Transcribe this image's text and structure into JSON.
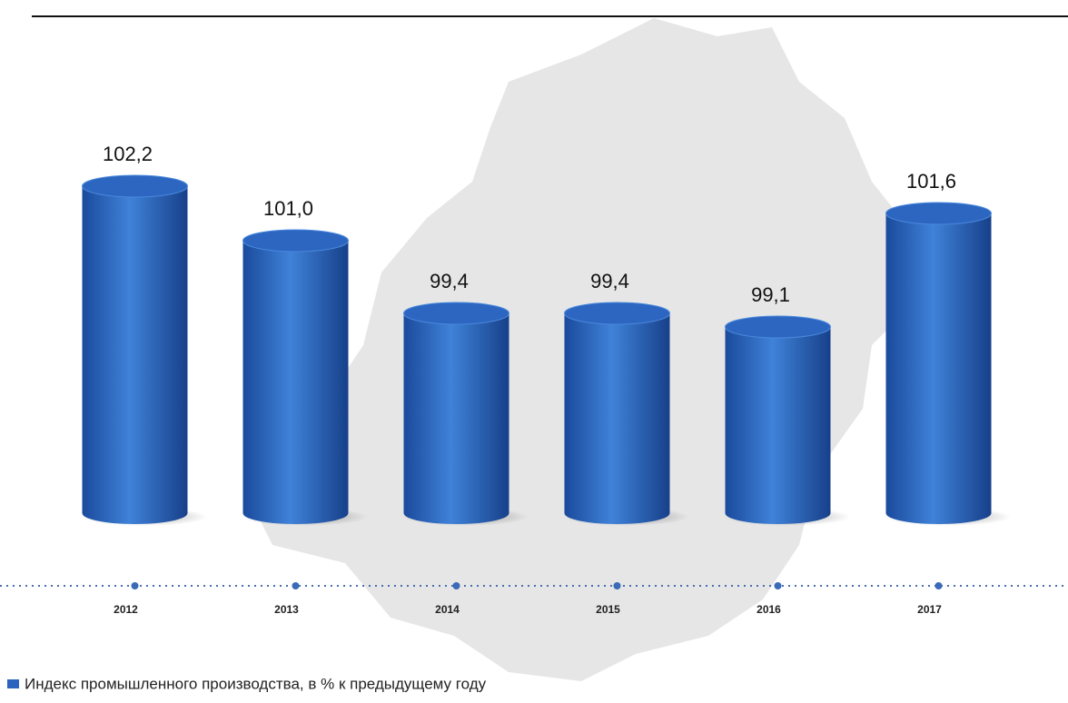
{
  "chart_data": {
    "type": "bar",
    "categories": [
      "2012",
      "2013",
      "2014",
      "2015",
      "2016",
      "2017"
    ],
    "series": [
      {
        "name": "Индекс промышленного  производства, в % к предыдущему году",
        "color": "#2a64be",
        "values": [
          102.2,
          101.0,
          99.4,
          99.4,
          99.1,
          101.6
        ],
        "value_labels": [
          "102,2",
          "101,0",
          "99,4",
          "99,4",
          "99,1",
          "101,6"
        ]
      }
    ],
    "ylim": [
      95,
      104
    ],
    "legend": "bottom-left"
  }
}
